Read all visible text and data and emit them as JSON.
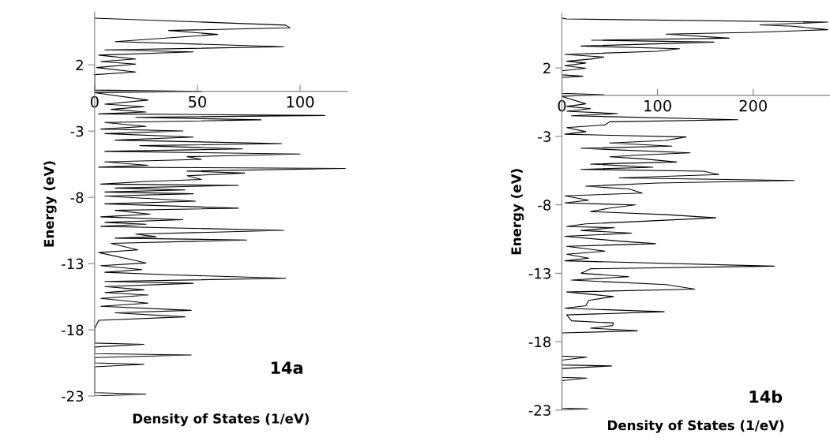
{
  "chart_data": [
    {
      "type": "line",
      "xlabel": "Density of States (1/eV)",
      "ylabel": "Energy (eV)",
      "annotations": [
        "14a"
      ],
      "xlim": [
        0,
        123
      ],
      "xticks": [
        0,
        50,
        100
      ],
      "ylim": [
        -23,
        6
      ],
      "yticks": [
        2,
        -3,
        -8,
        -13,
        -18,
        -23
      ],
      "grid": false,
      "legend": false,
      "series": [
        {
          "color": "#000000",
          "x": [
            0,
            93,
            95,
            36,
            60,
            10,
            92,
            5,
            48,
            2,
            20,
            3,
            20,
            1,
            20,
            0,
            0,
            52,
            0,
            26,
            5,
            24,
            8,
            25,
            2,
            112,
            20,
            81,
            5,
            25,
            3,
            43,
            5,
            48,
            10,
            91,
            22,
            72,
            5,
            100,
            45,
            52,
            5,
            26,
            2,
            122,
            45,
            73,
            45,
            52,
            25,
            3,
            70,
            10,
            44,
            5,
            48,
            5,
            49,
            5,
            70,
            10,
            27,
            3,
            43,
            5,
            25,
            3,
            92,
            20,
            30,
            10,
            74,
            8,
            21,
            2,
            20,
            25,
            3,
            23,
            5,
            38,
            93,
            5,
            48,
            5,
            24,
            5,
            26,
            3,
            26,
            3,
            47,
            10,
            44,
            2,
            0,
            0,
            24,
            0,
            0,
            47,
            0,
            0,
            24,
            0,
            0,
            25,
            0
          ],
          "values": [
            5.53,
            5.0,
            4.8,
            4.6,
            4.3,
            3.76,
            3.37,
            3.13,
            2.98,
            2.74,
            2.45,
            2.25,
            2.06,
            1.8,
            1.46,
            1.26,
            0.1,
            0.0,
            -0.1,
            -0.66,
            -0.96,
            -1.16,
            -1.36,
            -1.56,
            -1.7,
            -1.82,
            -1.96,
            -2.15,
            -2.35,
            -2.65,
            -2.85,
            -2.99,
            -3.19,
            -3.45,
            -3.68,
            -3.94,
            -4.1,
            -4.34,
            -4.53,
            -4.73,
            -4.93,
            -5.13,
            -5.33,
            -5.58,
            -5.72,
            -5.82,
            -6.02,
            -6.17,
            -6.37,
            -6.65,
            -6.8,
            -7.0,
            -7.1,
            -7.3,
            -7.44,
            -7.6,
            -7.73,
            -7.9,
            -8.29,
            -8.49,
            -8.82,
            -8.98,
            -9.27,
            -9.47,
            -9.69,
            -9.89,
            -10.03,
            -10.19,
            -10.49,
            -10.78,
            -10.98,
            -11.08,
            -11.22,
            -11.48,
            -11.97,
            -12.17,
            -12.77,
            -12.96,
            -13.16,
            -13.46,
            -13.66,
            -13.86,
            -14.11,
            -14.35,
            -14.49,
            -14.74,
            -14.98,
            -15.18,
            -15.38,
            -15.63,
            -15.99,
            -16.23,
            -16.53,
            -16.72,
            -17.02,
            -17.28,
            -17.91,
            -19.0,
            -19.1,
            -19.3,
            -19.8,
            -19.9,
            -20.1,
            -20.5,
            -20.6,
            -20.8,
            -22.75,
            -22.85,
            -23.0
          ]
        }
      ]
    },
    {
      "type": "line",
      "xlabel": "Density of States (1/eV)",
      "ylabel": "Energy (eV)",
      "annotations": [
        "14b"
      ],
      "xlim": [
        0,
        280
      ],
      "xticks": [
        0,
        100,
        200
      ],
      "ylim": [
        -23,
        6
      ],
      "yticks": [
        2,
        -3,
        -8,
        -13,
        -18,
        -23
      ],
      "grid": false,
      "legend": false,
      "series": [
        {
          "color": "#000000",
          "x": [
            0,
            5,
            278,
            207,
            241,
            278,
            200,
            109,
            175,
            31,
            159,
            20,
            123,
            100,
            3,
            44,
            30,
            5,
            25,
            3,
            25,
            0,
            0,
            22,
            0,
            0,
            44,
            0,
            25,
            5,
            30,
            5,
            58,
            10,
            184,
            50,
            45,
            5,
            25,
            3,
            130,
            108,
            50,
            115,
            20,
            134,
            90,
            50,
            85,
            120,
            30,
            95,
            20,
            148,
            164,
            60,
            243,
            100,
            25,
            70,
            84,
            3,
            28,
            3,
            77,
            50,
            30,
            110,
            161,
            25,
            5,
            55,
            20,
            73,
            3,
            60,
            98,
            5,
            45,
            5,
            28,
            3,
            222,
            30,
            20,
            70,
            10,
            109,
            139,
            5,
            54,
            28,
            25,
            3,
            107,
            5,
            10,
            54,
            53,
            30,
            79,
            0,
            0,
            26,
            0,
            0,
            52,
            0,
            0,
            26,
            0,
            0,
            27,
            0
          ],
          "values": [
            5.64,
            5.58,
            5.35,
            5.15,
            5.05,
            4.8,
            4.6,
            4.47,
            4.18,
            4.03,
            3.89,
            3.6,
            3.41,
            3.22,
            2.99,
            2.8,
            2.65,
            2.49,
            2.36,
            2.17,
            1.98,
            1.79,
            1.5,
            1.4,
            1.3,
            0.15,
            0.05,
            -0.08,
            -0.62,
            -0.81,
            -0.97,
            -1.16,
            -1.33,
            -1.49,
            -1.78,
            -1.93,
            -2.16,
            -2.36,
            -2.65,
            -2.84,
            -3.04,
            -3.29,
            -3.48,
            -3.71,
            -3.87,
            -4.2,
            -4.33,
            -4.49,
            -4.64,
            -4.87,
            -5.02,
            -5.25,
            -5.41,
            -5.54,
            -5.79,
            -6.03,
            -6.22,
            -6.41,
            -6.64,
            -6.84,
            -7.14,
            -7.34,
            -7.66,
            -7.86,
            -8.01,
            -8.24,
            -8.49,
            -8.72,
            -8.95,
            -9.39,
            -9.58,
            -9.68,
            -9.87,
            -10.07,
            -10.3,
            -10.65,
            -10.84,
            -11.03,
            -11.38,
            -11.61,
            -11.9,
            -12.09,
            -12.48,
            -12.67,
            -13.0,
            -13.25,
            -13.5,
            -13.83,
            -14.16,
            -14.37,
            -14.7,
            -14.98,
            -15.37,
            -15.56,
            -15.81,
            -16.04,
            -16.47,
            -16.63,
            -16.82,
            -17.01,
            -17.21,
            -17.36,
            -19.05,
            -19.13,
            -19.35,
            -19.7,
            -19.77,
            -19.96,
            -20.6,
            -20.66,
            -20.85,
            -22.85,
            -22.91,
            -23.0
          ]
        }
      ]
    }
  ]
}
